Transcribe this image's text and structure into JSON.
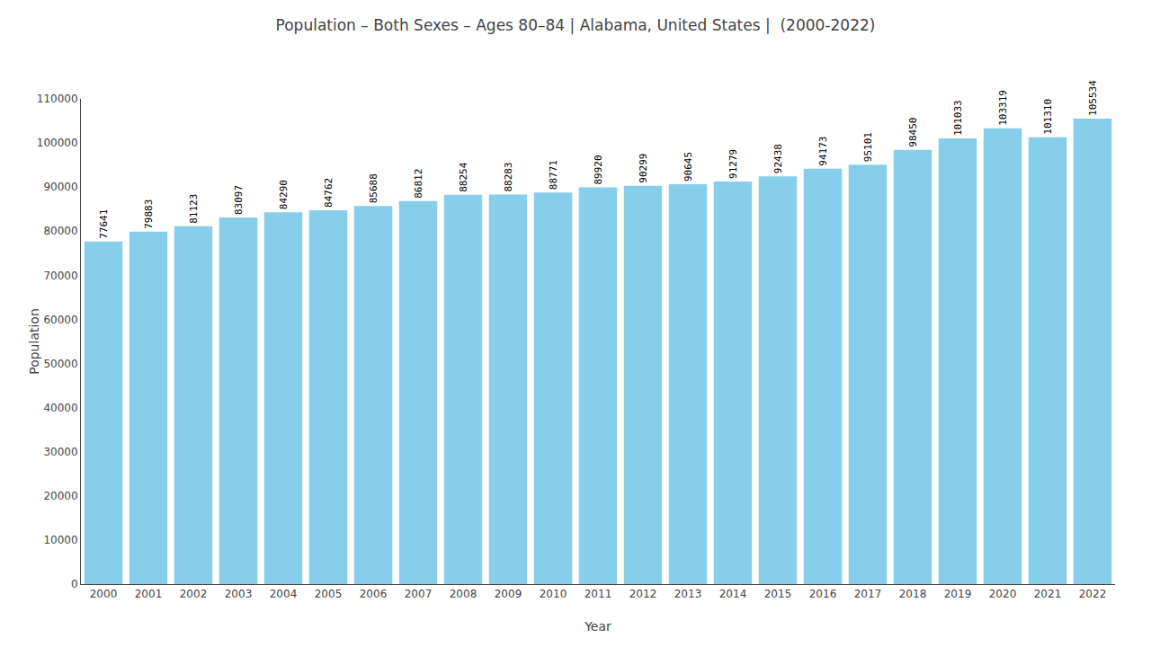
{
  "chart_data": {
    "type": "bar",
    "title": "Population – Both Sexes – Ages 80–84 | Alabama, United States |  (2000-2022)",
    "xlabel": "Year",
    "ylabel": "Population",
    "categories": [
      "2000",
      "2001",
      "2002",
      "2003",
      "2004",
      "2005",
      "2006",
      "2007",
      "2008",
      "2009",
      "2010",
      "2011",
      "2012",
      "2013",
      "2014",
      "2015",
      "2016",
      "2017",
      "2018",
      "2019",
      "2020",
      "2021",
      "2022"
    ],
    "values": [
      77641,
      79883,
      81123,
      83097,
      84290,
      84762,
      85688,
      86812,
      88254,
      88283,
      88771,
      89920,
      90299,
      90645,
      91279,
      92438,
      94173,
      95101,
      98450,
      101033,
      103319,
      101310,
      105534
    ],
    "color": "#87CEEB",
    "ylim": [
      0,
      110000
    ],
    "yticks": [
      0,
      10000,
      20000,
      30000,
      40000,
      50000,
      60000,
      70000,
      80000,
      90000,
      100000,
      110000
    ],
    "grid": false,
    "data_labels": true
  }
}
